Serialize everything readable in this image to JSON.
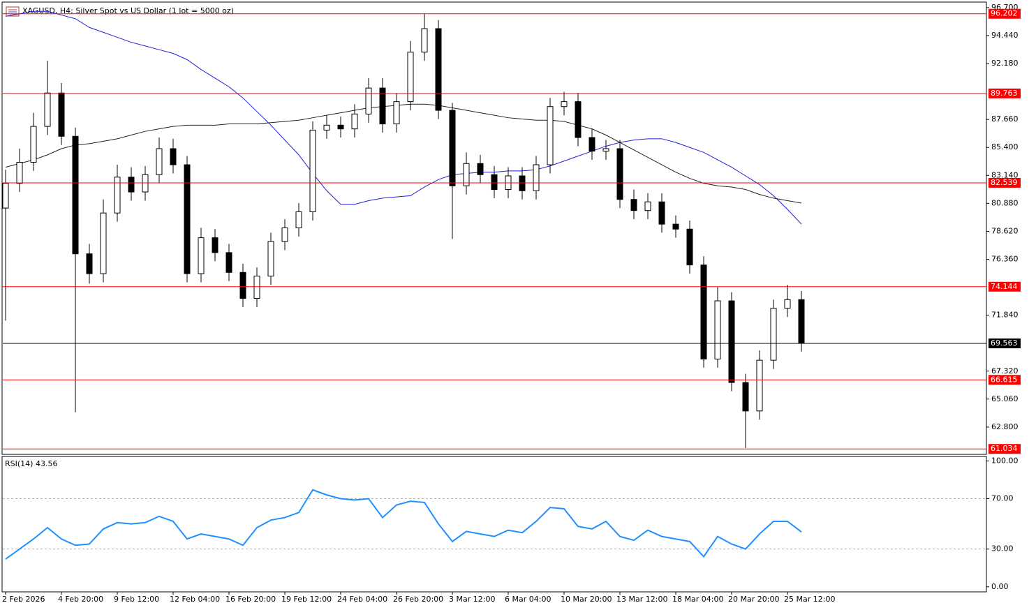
{
  "chart_data": [
    {
      "type": "candlestick",
      "title": "XAGUSD, H4:  Silver Spot vs US Dollar (1 lot = 5000 oz)",
      "categories": [
        "2 Feb 2026",
        null,
        null,
        null,
        "4 Feb 20:00",
        null,
        null,
        null,
        "9 Feb 12:00",
        null,
        null,
        null,
        "12 Feb 04:00",
        null,
        null,
        null,
        "16 Feb 20:00",
        null,
        null,
        null,
        "19 Feb 12:00",
        null,
        null,
        null,
        "24 Feb 04:00",
        null,
        null,
        null,
        "26 Feb 20:00",
        null,
        null,
        null,
        "3 Mar 12:00",
        null,
        null,
        null,
        "6 Mar 04:00",
        null,
        null,
        null,
        "10 Mar 20:00",
        null,
        null,
        null,
        "13 Mar 12:00",
        null,
        null,
        null,
        "18 Mar 04:00",
        null,
        null,
        null,
        "20 Mar 20:00",
        null,
        null,
        null,
        "25 Mar 12:00",
        null
      ],
      "open": [
        80.5,
        82.5,
        84.2,
        87.1,
        89.8,
        86.3,
        76.8,
        75.2,
        80.1,
        83.0,
        81.8,
        83.2,
        85.3,
        84.0,
        75.2,
        78.1,
        76.9,
        75.3,
        73.2,
        75.0,
        77.8,
        78.9,
        80.2,
        86.8,
        87.2,
        86.9,
        88.1,
        90.2,
        87.3,
        89.1,
        93.1,
        95.0,
        88.4,
        82.3,
        84.1,
        83.2,
        82.0,
        83.1,
        81.9,
        84.0,
        88.7,
        89.1,
        86.2,
        85.1,
        85.3,
        81.2,
        80.3,
        81.0,
        79.2,
        78.8,
        75.9,
        68.3,
        73.0,
        66.4,
        64.1,
        68.2,
        72.4,
        73.1
      ],
      "high": [
        83.6,
        85.3,
        88.2,
        92.4,
        90.6,
        87.0,
        77.6,
        81.2,
        84.0,
        83.8,
        83.9,
        86.2,
        86.1,
        84.7,
        78.9,
        78.8,
        77.6,
        76.0,
        75.7,
        78.5,
        79.6,
        80.9,
        87.5,
        88.0,
        87.9,
        88.9,
        91.0,
        91.0,
        89.8,
        94.0,
        96.2,
        95.7,
        89.0,
        85.0,
        84.8,
        83.9,
        83.8,
        83.8,
        84.7,
        89.4,
        89.9,
        89.8,
        86.9,
        86.0,
        86.0,
        82.0,
        81.7,
        81.7,
        79.9,
        79.5,
        76.6,
        74.1,
        73.7,
        67.1,
        69.0,
        73.1,
        74.3,
        73.8
      ],
      "low": [
        71.4,
        81.8,
        83.5,
        86.4,
        85.6,
        64.0,
        74.4,
        74.5,
        79.4,
        81.1,
        81.1,
        82.5,
        83.3,
        74.5,
        74.5,
        76.2,
        74.6,
        72.5,
        72.5,
        74.3,
        77.1,
        78.2,
        79.5,
        86.1,
        86.2,
        86.2,
        87.4,
        86.6,
        86.6,
        88.4,
        92.4,
        87.7,
        78.0,
        81.6,
        82.5,
        81.3,
        81.3,
        81.2,
        81.2,
        83.3,
        88.0,
        85.5,
        84.4,
        84.4,
        80.5,
        79.6,
        79.6,
        78.5,
        78.1,
        75.2,
        67.6,
        67.6,
        65.7,
        61.1,
        63.4,
        67.5,
        71.7,
        68.9
      ],
      "close": [
        82.5,
        84.2,
        87.1,
        89.8,
        86.3,
        76.8,
        75.2,
        80.1,
        83.0,
        81.8,
        83.2,
        85.3,
        84.0,
        75.2,
        78.1,
        76.9,
        75.3,
        73.2,
        75.0,
        77.8,
        78.9,
        80.2,
        86.8,
        87.2,
        86.9,
        88.1,
        90.2,
        87.3,
        89.1,
        93.1,
        95.0,
        88.4,
        82.3,
        84.1,
        83.2,
        82.0,
        83.1,
        81.9,
        84.0,
        88.7,
        89.1,
        86.2,
        85.1,
        85.3,
        81.2,
        80.3,
        81.0,
        79.2,
        78.8,
        75.9,
        68.3,
        73.0,
        66.4,
        64.1,
        68.2,
        72.4,
        73.1,
        69.563
      ],
      "overlays": [
        {
          "color": "#1f1fd8",
          "values": [
            96.0,
            96.2,
            96.4,
            96.4,
            96.1,
            95.8,
            95.1,
            94.7,
            94.3,
            93.9,
            93.6,
            93.3,
            93.0,
            92.5,
            91.7,
            91.0,
            90.3,
            89.4,
            88.3,
            87.2,
            86.0,
            84.8,
            83.3,
            81.9,
            80.8,
            80.8,
            81.1,
            81.3,
            81.4,
            81.5,
            82.2,
            82.8,
            83.2,
            83.3,
            83.4,
            83.4,
            83.5,
            83.5,
            83.6,
            83.9,
            84.3,
            84.7,
            85.1,
            85.5,
            85.8,
            86.0,
            86.1,
            86.1,
            85.8,
            85.4,
            85.0,
            84.4,
            83.8,
            83.1,
            82.4,
            81.5,
            80.4,
            79.2
          ]
        },
        {
          "color": "#222222",
          "values": [
            83.8,
            84.1,
            84.4,
            84.8,
            85.3,
            85.6,
            85.7,
            85.9,
            86.1,
            86.4,
            86.7,
            86.9,
            87.1,
            87.2,
            87.2,
            87.2,
            87.3,
            87.3,
            87.3,
            87.4,
            87.5,
            87.6,
            87.8,
            88.0,
            88.2,
            88.4,
            88.6,
            88.7,
            88.8,
            88.9,
            88.9,
            88.8,
            88.6,
            88.4,
            88.2,
            88.0,
            87.8,
            87.7,
            87.6,
            87.6,
            87.5,
            87.2,
            86.9,
            86.4,
            85.8,
            85.2,
            84.6,
            84.0,
            83.4,
            82.9,
            82.5,
            82.3,
            82.2,
            82.0,
            81.6,
            81.3,
            81.1,
            80.9
          ]
        }
      ],
      "levels": [
        {
          "value": 96.202,
          "color": "#ff0000"
        },
        {
          "value": 89.763,
          "color": "#ff0000"
        },
        {
          "value": 82.539,
          "color": "#ff0000"
        },
        {
          "value": 74.144,
          "color": "#ff0000"
        },
        {
          "value": 66.615,
          "color": "#ff0000"
        },
        {
          "value": 61.034,
          "color": "#ff0000"
        }
      ],
      "ylim": [
        60.65,
        97.09
      ],
      "yticks": [
        {
          "value": 96.7,
          "label": "96.700"
        },
        {
          "value": 94.44,
          "label": "94.440"
        },
        {
          "value": 92.18,
          "label": "92.180"
        },
        {
          "value": 87.66,
          "label": "87.660"
        },
        {
          "value": 85.4,
          "label": "85.400"
        },
        {
          "value": 83.14,
          "label": "83.140"
        },
        {
          "value": 80.88,
          "label": "80.880"
        },
        {
          "value": 78.62,
          "label": "78.620"
        },
        {
          "value": 76.36,
          "label": "76.360"
        },
        {
          "value": 71.84,
          "label": "71.840"
        },
        {
          "value": 67.32,
          "label": "67.320"
        },
        {
          "value": 65.06,
          "label": "65.060"
        },
        {
          "value": 62.8,
          "label": "62.800"
        }
      ]
    },
    {
      "type": "line",
      "title": "RSI(14)",
      "color": "#1e90ff",
      "values": [
        22,
        30,
        38,
        47,
        38,
        33,
        34,
        46,
        51,
        50,
        51,
        56,
        52,
        38,
        42,
        40,
        38,
        33,
        47,
        53,
        55,
        59,
        77,
        73,
        70,
        69,
        70,
        55,
        65,
        68,
        67,
        50,
        36,
        44,
        42,
        40,
        45,
        43,
        52,
        63,
        62,
        48,
        46,
        52,
        40,
        37,
        45,
        40,
        38,
        36,
        24,
        40,
        34,
        30,
        42,
        52,
        52,
        43.56
      ],
      "ylim": [
        -4,
        103
      ],
      "yticks": [
        {
          "value": 100,
          "label": "100.00"
        },
        {
          "value": 70,
          "label": "70.00"
        },
        {
          "value": 30,
          "label": "30.00"
        },
        {
          "value": 0,
          "label": "0.00"
        }
      ],
      "dashed_levels": [
        70,
        30
      ]
    }
  ]
}
